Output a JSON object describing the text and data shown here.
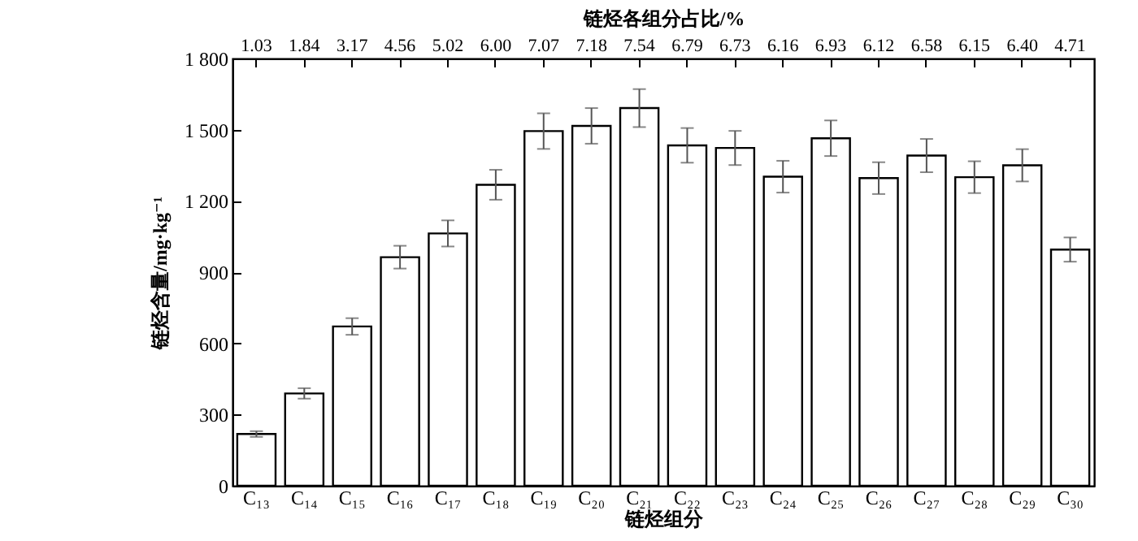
{
  "chart_data": {
    "type": "bar",
    "xlabel": "链烃组分",
    "ylabel": "链烃含量/mg·kg⁻¹",
    "x2label": "链烃各组分占比/%",
    "categories": [
      "C₁₃",
      "C₁₄",
      "C₁₅",
      "C₁₆",
      "C₁₇",
      "C₁₈",
      "C₁₉",
      "C₂₀",
      "C₂₁",
      "C₂₂",
      "C₂₃",
      "C₂₄",
      "C₂₅",
      "C₂₆",
      "C₂₇",
      "C₂₈",
      "C₂₉",
      "C₃₀"
    ],
    "values": [
      218,
      389,
      671,
      963,
      1063,
      1268,
      1494,
      1516,
      1591,
      1434,
      1423,
      1302,
      1464,
      1296,
      1391,
      1300,
      1350,
      995
    ],
    "errors": [
      12,
      22,
      35,
      48,
      55,
      63,
      75,
      75,
      80,
      73,
      72,
      67,
      75,
      67,
      70,
      67,
      68,
      51
    ],
    "color": "#ffffff",
    "ylim": [
      0,
      1800
    ],
    "yticks": [
      0,
      {
        "value": 300,
        "label": "300"
      },
      {
        "value": 600,
        "label": "600"
      },
      {
        "value": 900,
        "label": "900"
      },
      {
        "value": 1200,
        "label": "1 200"
      },
      {
        "value": 1500,
        "label": "1 500"
      },
      {
        "value": 1800,
        "label": "1 800"
      }
    ],
    "annotations": [
      "1.03",
      "1.84",
      "3.17",
      "4.56",
      "5.02",
      "6.00",
      "7.07",
      "7.18",
      "7.54",
      "6.79",
      "6.73",
      "6.16",
      "6.93",
      "6.12",
      "6.58",
      "6.15",
      "6.40",
      "4.71"
    ],
    "grid": false
  }
}
